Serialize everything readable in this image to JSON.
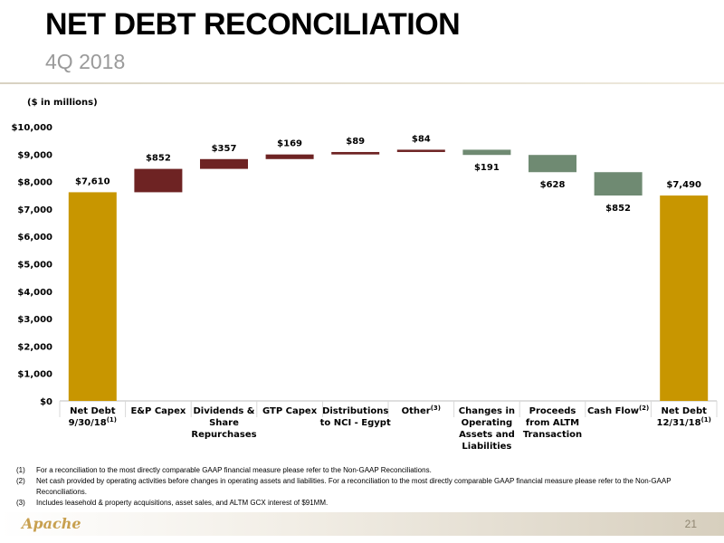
{
  "header": {
    "title": "NET DEBT RECONCILIATION",
    "subtitle": "4Q 2018"
  },
  "units_label": "($ in millions)",
  "colors": {
    "gold": "#c89600",
    "maroon": "#6e2323",
    "green": "#6f8a72"
  },
  "chart_data": {
    "type": "bar",
    "subtype": "waterfall",
    "ylim": [
      0,
      10000
    ],
    "yticks": [
      0,
      1000,
      2000,
      3000,
      4000,
      5000,
      6000,
      7000,
      8000,
      9000,
      10000
    ],
    "ytick_labels": [
      "$0",
      "$1,000",
      "$2,000",
      "$3,000",
      "$4,000",
      "$5,000",
      "$6,000",
      "$7,000",
      "$8,000",
      "$9,000",
      "$10,000"
    ],
    "grid": false,
    "bars": [
      {
        "category": [
          "Net Debt",
          "9/30/18"
        ],
        "sup": "(1)",
        "kind": "total",
        "start": 0,
        "end": 7610,
        "label": "$7,610"
      },
      {
        "category": [
          "E&P Capex"
        ],
        "sup": "",
        "kind": "increase",
        "start": 7610,
        "end": 8462,
        "label": "$852"
      },
      {
        "category": [
          "Dividends &",
          "Share",
          "Repurchases"
        ],
        "sup": "",
        "kind": "increase",
        "start": 8462,
        "end": 8819,
        "label": "$357"
      },
      {
        "category": [
          "GTP Capex"
        ],
        "sup": "",
        "kind": "increase",
        "start": 8819,
        "end": 8988,
        "label": "$169"
      },
      {
        "category": [
          "Distributions",
          "to NCI - Egypt"
        ],
        "sup": "",
        "kind": "increase",
        "start": 8988,
        "end": 9077,
        "label": "$89"
      },
      {
        "category": [
          "Other"
        ],
        "sup": "(3)",
        "kind": "increase",
        "start": 9077,
        "end": 9161,
        "label": "$84"
      },
      {
        "category": [
          "Changes in",
          "Operating",
          "Assets and",
          "Liabilities"
        ],
        "sup": "",
        "kind": "decrease",
        "start": 9161,
        "end": 8970,
        "label": "$191"
      },
      {
        "category": [
          "Proceeds",
          "from ALTM",
          "Transaction"
        ],
        "sup": "",
        "kind": "decrease",
        "start": 8970,
        "end": 8342,
        "label": "$628"
      },
      {
        "category": [
          "Cash Flow"
        ],
        "sup": "(2)",
        "kind": "decrease",
        "start": 8342,
        "end": 7490,
        "label": "$852"
      },
      {
        "category": [
          "Net Debt",
          "12/31/18"
        ],
        "sup": "(1)",
        "kind": "total",
        "start": 0,
        "end": 7490,
        "label": "$7,490"
      }
    ]
  },
  "footnotes": [
    {
      "num": "(1)",
      "text": "For a reconciliation to the most directly comparable GAAP financial measure please refer to the Non-GAAP Reconciliations."
    },
    {
      "num": "(2)",
      "text": "Net cash provided by operating activities before changes in operating assets and liabilities.  For a reconciliation to the most directly comparable GAAP financial measure please refer to the Non-GAAP Reconciliations."
    },
    {
      "num": "(3)",
      "text": "Includes leasehold & property acquisitions, asset sales, and ALTM GCX interest of $91MM."
    }
  ],
  "footer": {
    "logo": "Apache",
    "page_number": "21"
  }
}
